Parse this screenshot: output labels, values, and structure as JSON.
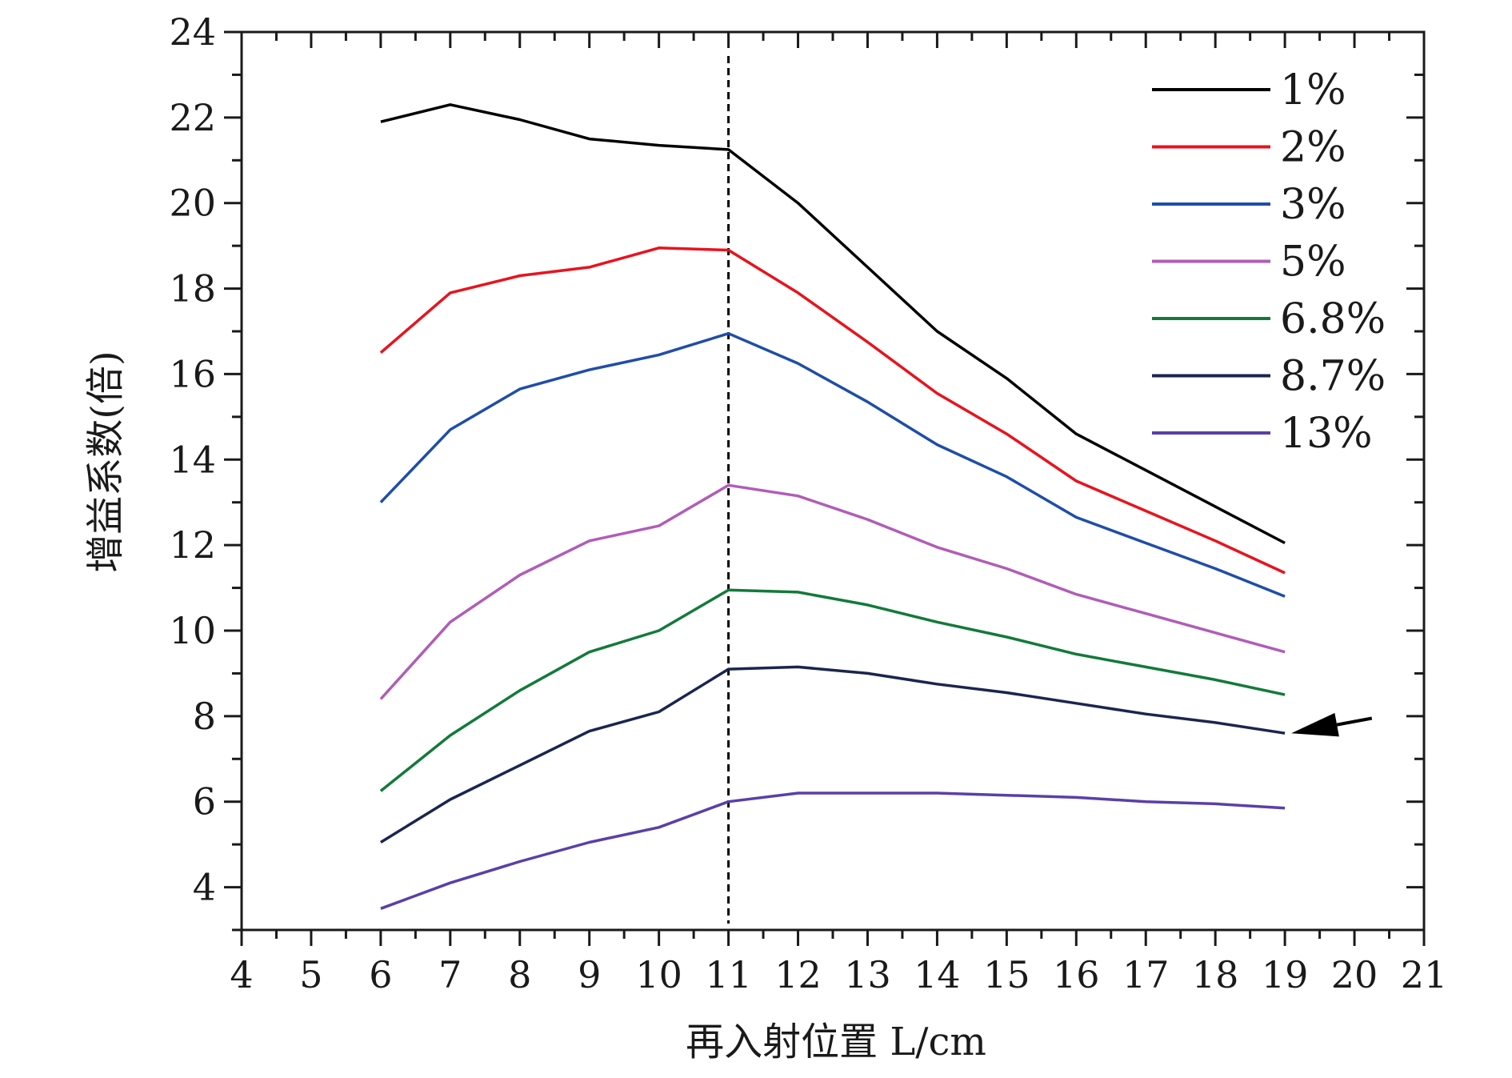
{
  "chart_data": {
    "type": "line",
    "xlabel": "再入射位置 L/cm",
    "ylabel": "增益系数(倍)",
    "xlim": [
      4,
      21
    ],
    "ylim": [
      3,
      24
    ],
    "x_ticks": [
      "4",
      "5",
      "6",
      "7",
      "8",
      "9",
      "10",
      "11",
      "12",
      "13",
      "14",
      "15",
      "16",
      "17",
      "18",
      "19",
      "20",
      "21"
    ],
    "y_ticks": [
      "4",
      "6",
      "8",
      "10",
      "12",
      "14",
      "16",
      "18",
      "20",
      "22",
      "24"
    ],
    "x": [
      6,
      7,
      8,
      9,
      10,
      11,
      12,
      13,
      14,
      15,
      16,
      17,
      18,
      19
    ],
    "series": [
      {
        "name": "1%",
        "color": "#000000",
        "values": [
          21.9,
          22.3,
          21.95,
          21.5,
          21.35,
          21.25,
          20.0,
          18.5,
          17.0,
          15.9,
          14.6,
          13.75,
          12.9,
          12.05
        ]
      },
      {
        "name": "2%",
        "color": "#e8131d",
        "values": [
          16.5,
          17.9,
          18.3,
          18.5,
          18.95,
          18.9,
          17.9,
          16.75,
          15.55,
          14.6,
          13.5,
          12.8,
          12.1,
          11.35
        ]
      },
      {
        "name": "3%",
        "color": "#1f4ea8",
        "values": [
          13.0,
          14.7,
          15.65,
          16.1,
          16.45,
          16.95,
          16.25,
          15.35,
          14.35,
          13.6,
          12.65,
          12.05,
          11.45,
          10.8
        ]
      },
      {
        "name": "5%",
        "color": "#b15cb8",
        "values": [
          8.4,
          10.2,
          11.3,
          12.1,
          12.45,
          13.4,
          13.15,
          12.6,
          11.95,
          11.45,
          10.85,
          10.4,
          9.95,
          9.5
        ]
      },
      {
        "name": "6.8%",
        "color": "#137a3a",
        "values": [
          6.25,
          7.55,
          8.6,
          9.5,
          10.0,
          10.95,
          10.9,
          10.6,
          10.2,
          9.85,
          9.45,
          9.15,
          8.85,
          8.5
        ]
      },
      {
        "name": "8.7%",
        "color": "#1a2550",
        "values": [
          5.05,
          6.05,
          6.85,
          7.65,
          8.1,
          9.1,
          9.15,
          9.0,
          8.75,
          8.55,
          8.3,
          8.05,
          7.85,
          7.6
        ]
      },
      {
        "name": "13%",
        "color": "#5a3fa8",
        "values": [
          3.5,
          4.1,
          4.6,
          5.05,
          5.4,
          6.0,
          6.2,
          6.2,
          6.2,
          6.15,
          6.1,
          6.0,
          5.95,
          5.85
        ]
      }
    ],
    "reference_line": {
      "x": 11,
      "style": "dashed",
      "color": "#000000"
    },
    "arrow_annotation": {
      "points_to": {
        "x": 19,
        "y": 7.6
      },
      "from": {
        "x": 20.25,
        "y": 7.95
      },
      "color": "#000000"
    },
    "legend": {
      "placement": "top-right"
    },
    "grid": false
  }
}
